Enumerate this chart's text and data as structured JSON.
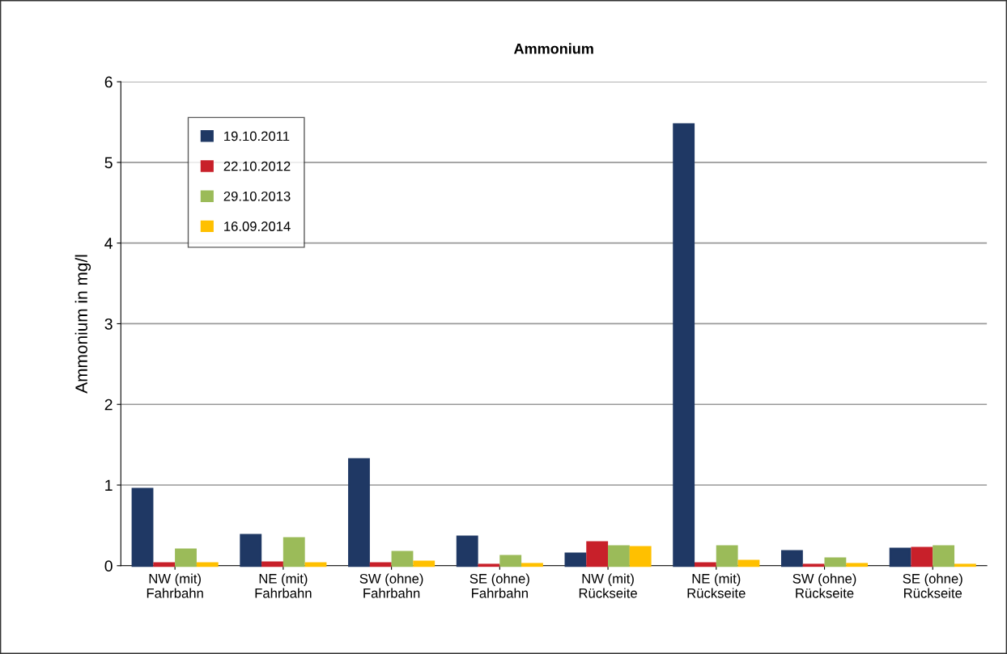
{
  "chart_data": {
    "type": "bar",
    "title": "Ammonium",
    "ylabel": "Ammonium in mg/l",
    "categories": [
      "NW (mit)\nFahrbahn",
      "NE (mit)\nFahrbahn",
      "SW (ohne)\nFahrbahn",
      "SE (ohne)\nFahrbahn",
      "NW (mit)\nRückseite",
      "NE (mit)\nRückseite",
      "SW (ohne)\nRückseite",
      "SE (ohne)\nRückseite"
    ],
    "series": [
      {
        "name": "19.10.2011",
        "color": "#1f3864",
        "values": [
          0.95,
          0.38,
          1.32,
          0.36,
          0.15,
          5.47,
          0.18,
          0.21
        ]
      },
      {
        "name": "22.10.2012",
        "color": "#c8202a",
        "values": [
          0.03,
          0.04,
          0.03,
          0.01,
          0.29,
          0.03,
          0.01,
          0.22
        ]
      },
      {
        "name": "29.10.2013",
        "color": "#9bbb59",
        "values": [
          0.2,
          0.34,
          0.17,
          0.12,
          0.24,
          0.24,
          0.09,
          0.24
        ]
      },
      {
        "name": "16.09.2014",
        "color": "#ffc000",
        "values": [
          0.03,
          0.03,
          0.05,
          0.02,
          0.23,
          0.06,
          0.02,
          0.01
        ]
      }
    ],
    "ylim": [
      0,
      6
    ],
    "yticks": [
      0,
      1,
      2,
      3,
      4,
      5,
      6
    ],
    "grid": "y",
    "legend": "top left"
  }
}
